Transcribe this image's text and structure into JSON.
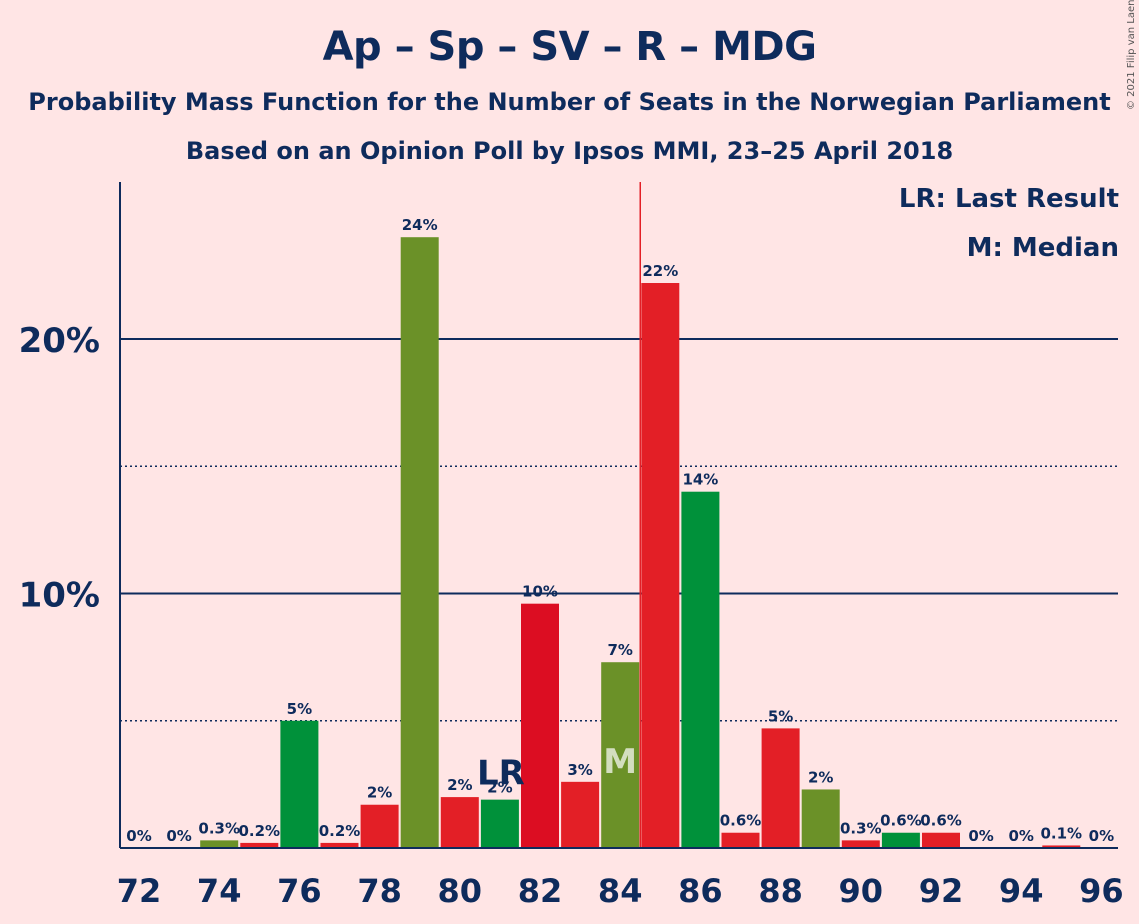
{
  "title": "Ap – Sp – SV – R – MDG",
  "subtitle1": "Probability Mass Function for the Number of Seats in the Norwegian Parliament",
  "subtitle2": "Based on an Opinion Poll by Ipsos MMI, 23–25 April 2018",
  "copyright": "© 2021 Filip van Laenen",
  "legend": {
    "lr": "LR: Last Result",
    "m": "M: Median"
  },
  "chart_data": {
    "type": "bar",
    "x": [
      72,
      73,
      74,
      75,
      76,
      77,
      78,
      79,
      80,
      81,
      82,
      83,
      84,
      85,
      86,
      87,
      88,
      89,
      90,
      91,
      92,
      93,
      94,
      95,
      96
    ],
    "values": [
      0,
      0,
      0.3,
      0.2,
      5,
      0.2,
      1.7,
      24,
      2,
      1.9,
      9.6,
      2.6,
      7.3,
      22.2,
      14,
      0.6,
      4.7,
      2.3,
      0.3,
      0.6,
      0.6,
      0,
      0,
      0.1,
      0
    ],
    "labels": [
      "0%",
      "0%",
      "0.3%",
      "0.2%",
      "5%",
      "0.2%",
      "2%",
      "24%",
      "2%",
      "2%",
      "10%",
      "3%",
      "7%",
      "22%",
      "14%",
      "0.6%",
      "5%",
      "2%",
      "0.3%",
      "0.6%",
      "0.6%",
      "0%",
      "0%",
      "0.1%",
      "0%"
    ],
    "colors": [
      "#E31F26",
      "#00913A",
      "#6B9128",
      "#E31F26",
      "#00913A",
      "#E31F26",
      "#E31F26",
      "#6B9128",
      "#E31F26",
      "#00913A",
      "#DC0D22",
      "#E31F26",
      "#6B9128",
      "#E31F26",
      "#00913A",
      "#E31F26",
      "#E31F26",
      "#6B9128",
      "#E31F26",
      "#00913A",
      "#E31F26",
      "#E31F26",
      "#00913A",
      "#E31F26",
      "#E31F26"
    ],
    "xticks": [
      "72",
      "74",
      "76",
      "78",
      "80",
      "82",
      "84",
      "86",
      "88",
      "90",
      "92",
      "94",
      "96"
    ],
    "yticks": [
      "10%",
      "20%"
    ],
    "ylim": [
      0,
      26
    ],
    "majable_gridlines": [
      10,
      20
    ],
    "dotted_gridlines": [
      5,
      15
    ],
    "last_result": 81,
    "last_result_label": "LR",
    "median": 84,
    "median_label": "M",
    "majority_line": 84.5,
    "colors_main": {
      "text": "#0E2B5C",
      "majority": "#E31F26",
      "background": "#FFE5E5"
    }
  }
}
